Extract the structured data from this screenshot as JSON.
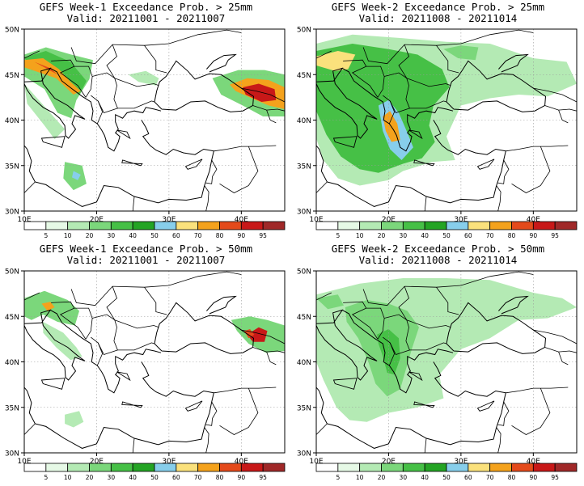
{
  "panels": [
    {
      "title": "GEFS Week-1 Exceedance Prob. > 25mm",
      "valid": "Valid: 20211001 - 20211007"
    },
    {
      "title": "GEFS Week-2 Exceedance Prob. > 25mm",
      "valid": "Valid: 20211008 - 20211014"
    },
    {
      "title": "GEFS Week-1 Exceedance Prob. > 50mm",
      "valid": "Valid: 20211001 - 20211007"
    },
    {
      "title": "GEFS Week-2 Exceedance Prob. > 50mm",
      "valid": "Valid: 20211008 - 20211014"
    }
  ],
  "map": {
    "lon_range": [
      10,
      46
    ],
    "lat_range": [
      30,
      50
    ],
    "lon_ticks": [
      "10E",
      "20E",
      "30E",
      "40E"
    ],
    "lat_ticks": [
      "50N",
      "45N",
      "40N",
      "35N",
      "30N"
    ]
  },
  "colorbar": {
    "labels": [
      "5",
      "10",
      "20",
      "30",
      "40",
      "50",
      "60",
      "70",
      "80",
      "90",
      "95"
    ],
    "colors": [
      "#ffffff",
      "#e6f9e6",
      "#b4eab4",
      "#7bd77b",
      "#46c046",
      "#24a424",
      "#87ceeb",
      "#fae17c",
      "#f4a21c",
      "#e44a1b",
      "#c81818",
      "#a02828"
    ]
  }
}
